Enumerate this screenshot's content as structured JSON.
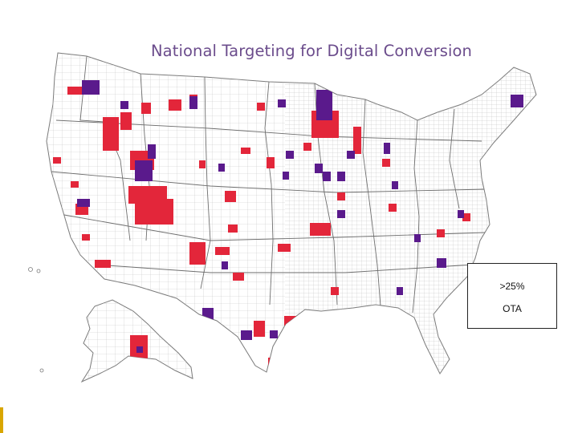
{
  "title": "National Targeting for Digital Conversion",
  "legend": {
    "threshold": ">25%",
    "label": "OTA"
  },
  "colors": {
    "title": "#6b4c8c",
    "red_counties": "#e3263a",
    "purple_counties": "#5a1a8c",
    "county_lines": "#bdbdbd",
    "background": "#ffffff"
  }
}
